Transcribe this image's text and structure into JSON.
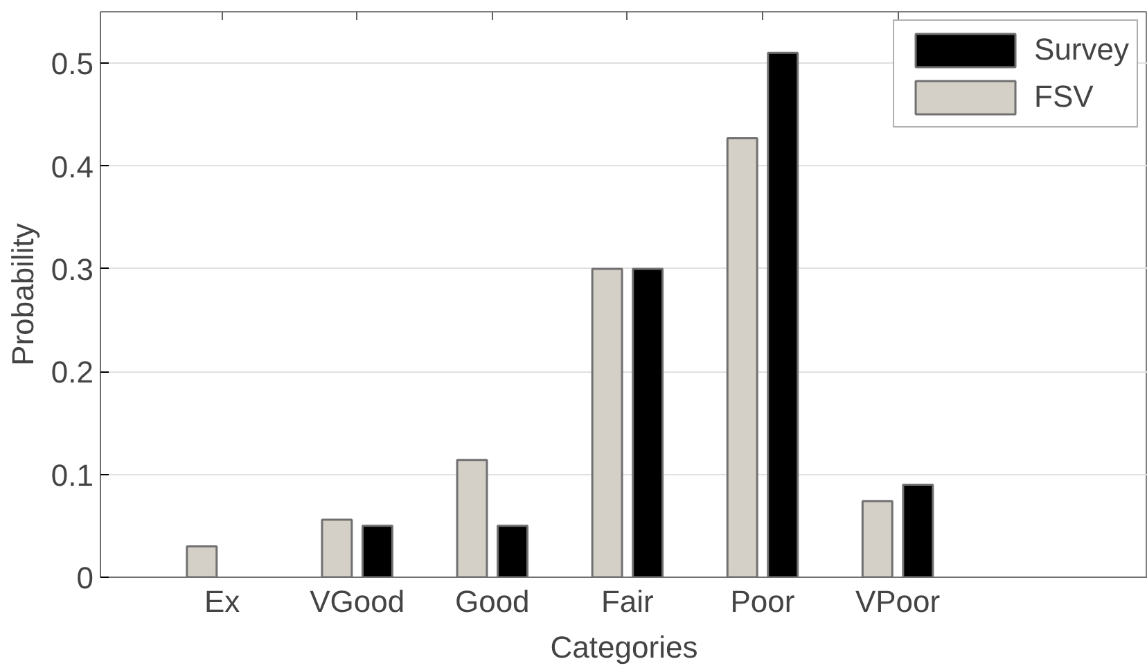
{
  "chart_data": {
    "type": "bar",
    "xlabel": "Categories",
    "ylabel": "Probability",
    "categories": [
      "Ex",
      "VGood",
      "Good",
      "Fair",
      "Poor",
      "VPoor"
    ],
    "series": [
      {
        "name": "FSV",
        "color": "#d4d0c8",
        "values": [
          0.03,
          0.056,
          0.114,
          0.3,
          0.427,
          0.074
        ]
      },
      {
        "name": "Survey",
        "color": "#000000",
        "values": [
          null,
          0.05,
          0.05,
          0.3,
          0.51,
          0.09
        ]
      }
    ],
    "ylim": [
      0,
      0.55
    ],
    "yticks": [
      0,
      0.1,
      0.2,
      0.3,
      0.4,
      0.5
    ],
    "grid": "y",
    "legend": "top right"
  }
}
